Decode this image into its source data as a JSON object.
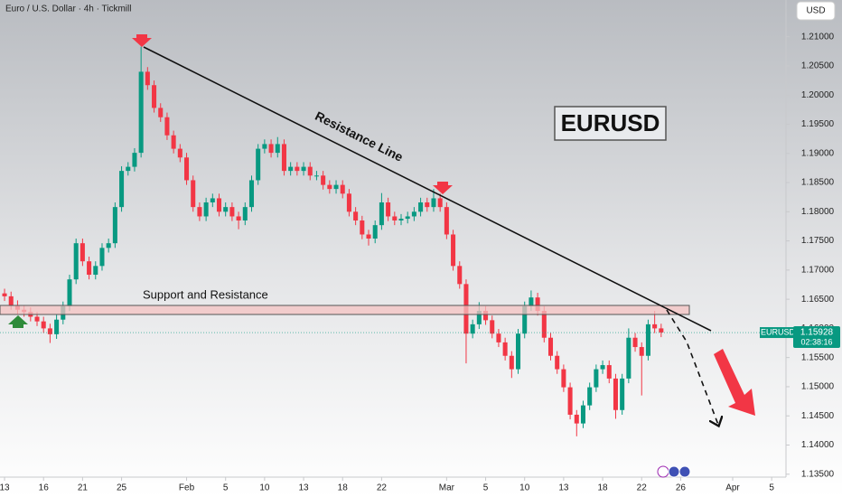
{
  "chart_data": {
    "type": "candlestick",
    "title": "Euro / U.S. Dollar · 4h · Tickmill",
    "currency": "USD",
    "countdown": "02:38:16",
    "last_price": 1.15928,
    "annotations": [
      "Support and Resistance",
      "Resistance Line",
      "EURUSD"
    ],
    "grid": false,
    "xlim": [
      -0.35,
      60.1
    ],
    "ylim": [
      1.1345,
      1.2163
    ],
    "xticks": [
      {
        "value": 0,
        "label": "13"
      },
      {
        "value": 3,
        "label": "16"
      },
      {
        "value": 6,
        "label": "21"
      },
      {
        "value": 9,
        "label": "25"
      },
      {
        "value": 14,
        "label": "Feb"
      },
      {
        "value": 17,
        "label": "5"
      },
      {
        "value": 20,
        "label": "10"
      },
      {
        "value": 23,
        "label": "13"
      },
      {
        "value": 26,
        "label": "18"
      },
      {
        "value": 29,
        "label": "22"
      },
      {
        "value": 34,
        "label": "Mar"
      },
      {
        "value": 37,
        "label": "5"
      },
      {
        "value": 40,
        "label": "10"
      },
      {
        "value": 43,
        "label": "13"
      },
      {
        "value": 46,
        "label": "18"
      },
      {
        "value": 49,
        "label": "22"
      },
      {
        "value": 52,
        "label": "26"
      },
      {
        "value": 56,
        "label": "Apr"
      },
      {
        "value": 59,
        "label": "5"
      }
    ],
    "yticks": [
      {
        "value": 1.135,
        "label": "1.13500"
      },
      {
        "value": 1.14,
        "label": "1.14000"
      },
      {
        "value": 1.145,
        "label": "1.14500"
      },
      {
        "value": 1.15,
        "label": "1.15000"
      },
      {
        "value": 1.155,
        "label": "1.15500"
      },
      {
        "value": 1.16,
        "label": "1.16000"
      },
      {
        "value": 1.165,
        "label": "1.16500"
      },
      {
        "value": 1.17,
        "label": "1.17000"
      },
      {
        "value": 1.175,
        "label": "1.17500"
      },
      {
        "value": 1.18,
        "label": "1.18000"
      },
      {
        "value": 1.185,
        "label": "1.18500"
      },
      {
        "value": 1.19,
        "label": "1.19000"
      },
      {
        "value": 1.195,
        "label": "1.19500"
      },
      {
        "value": 1.2,
        "label": "1.20000"
      },
      {
        "value": 1.205,
        "label": "1.20500"
      },
      {
        "value": 1.21,
        "label": "1.21000"
      }
    ],
    "series": [
      {
        "name": "EURUSD",
        "up_color": "#089981",
        "down_color": "#f23645",
        "x": [
          0,
          0.5,
          1,
          1.5,
          2,
          2.5,
          3,
          3.5,
          4,
          4.5,
          5,
          5.5,
          6,
          6.5,
          7,
          7.5,
          8,
          8.5,
          9,
          9.5,
          10,
          10.5,
          11,
          11.5,
          12,
          12.5,
          13,
          13.5,
          14,
          14.5,
          15,
          15.5,
          16,
          16.5,
          17,
          17.5,
          18,
          18.5,
          19,
          19.5,
          20,
          20.5,
          21,
          21.5,
          22,
          22.5,
          23,
          23.5,
          24,
          24.5,
          25,
          25.5,
          26,
          26.5,
          27,
          27.5,
          28,
          28.5,
          29,
          29.5,
          30,
          30.5,
          31,
          31.5,
          32,
          32.5,
          33,
          33.5,
          34,
          34.5,
          35,
          35.5,
          36,
          36.5,
          37,
          37.5,
          38,
          38.5,
          39,
          39.5,
          40,
          40.5,
          41,
          41.5,
          42,
          42.5,
          43,
          43.5,
          44,
          44.5,
          45,
          45.5,
          46,
          46.5,
          47,
          47.5,
          48,
          48.5,
          49,
          49.5,
          50,
          50.5
        ],
        "ohlc": [
          [
            1.166,
            1.1668,
            1.1647,
            1.1655
          ],
          [
            1.1655,
            1.1663,
            1.1632,
            1.164
          ],
          [
            1.164,
            1.1648,
            1.1624,
            1.1632
          ],
          [
            1.1632,
            1.164,
            1.162,
            1.1628
          ],
          [
            1.1628,
            1.1636,
            1.1612,
            1.162
          ],
          [
            1.162,
            1.1628,
            1.1604,
            1.1612
          ],
          [
            1.1612,
            1.162,
            1.1592,
            1.16
          ],
          [
            1.16,
            1.1608,
            1.1575,
            1.159
          ],
          [
            1.159,
            1.1623,
            1.1582,
            1.1615
          ],
          [
            1.1615,
            1.1646,
            1.1607,
            1.1638
          ],
          [
            1.1638,
            1.1692,
            1.163,
            1.1684
          ],
          [
            1.1684,
            1.1754,
            1.1676,
            1.1746
          ],
          [
            1.1746,
            1.1754,
            1.1707,
            1.1715
          ],
          [
            1.1715,
            1.1723,
            1.1684,
            1.1692
          ],
          [
            1.1692,
            1.1715,
            1.1684,
            1.1707
          ],
          [
            1.1707,
            1.1746,
            1.1699,
            1.1738
          ],
          [
            1.1738,
            1.1754,
            1.173,
            1.1746
          ],
          [
            1.1746,
            1.1816,
            1.1738,
            1.1808
          ],
          [
            1.1808,
            1.1878,
            1.18,
            1.187
          ],
          [
            1.187,
            1.1885,
            1.1862,
            1.1877
          ],
          [
            1.1877,
            1.1909,
            1.1869,
            1.1901
          ],
          [
            1.1901,
            1.2083,
            1.1893,
            1.204
          ],
          [
            1.204,
            1.2048,
            1.2009,
            1.2017
          ],
          [
            1.2017,
            1.2025,
            1.197,
            1.1978
          ],
          [
            1.1978,
            1.1986,
            1.1954,
            1.1962
          ],
          [
            1.1962,
            1.197,
            1.1923,
            1.1931
          ],
          [
            1.1931,
            1.1939,
            1.19,
            1.1908
          ],
          [
            1.1908,
            1.1916,
            1.1885,
            1.1893
          ],
          [
            1.1893,
            1.1901,
            1.1846,
            1.1854
          ],
          [
            1.1854,
            1.1862,
            1.18,
            1.1808
          ],
          [
            1.1808,
            1.1816,
            1.1784,
            1.1792
          ],
          [
            1.1792,
            1.1824,
            1.1784,
            1.1816
          ],
          [
            1.1816,
            1.1831,
            1.1808,
            1.1823
          ],
          [
            1.1823,
            1.1831,
            1.1792,
            1.18
          ],
          [
            1.18,
            1.1816,
            1.1792,
            1.1808
          ],
          [
            1.1808,
            1.1816,
            1.1784,
            1.1792
          ],
          [
            1.1792,
            1.18,
            1.177,
            1.1785
          ],
          [
            1.1785,
            1.1816,
            1.1777,
            1.1808
          ],
          [
            1.1808,
            1.1862,
            1.18,
            1.1854
          ],
          [
            1.1854,
            1.1916,
            1.1846,
            1.1908
          ],
          [
            1.1908,
            1.1924,
            1.19,
            1.1916
          ],
          [
            1.1916,
            1.1924,
            1.1893,
            1.1901
          ],
          [
            1.1901,
            1.1928,
            1.1893,
            1.1916
          ],
          [
            1.1916,
            1.1924,
            1.1862,
            1.187
          ],
          [
            1.187,
            1.1885,
            1.1862,
            1.1877
          ],
          [
            1.1877,
            1.1885,
            1.1862,
            1.187
          ],
          [
            1.187,
            1.1885,
            1.1862,
            1.1877
          ],
          [
            1.1877,
            1.1885,
            1.1854,
            1.1862
          ],
          [
            1.1862,
            1.187,
            1.1854,
            1.1862
          ],
          [
            1.1862,
            1.187,
            1.1838,
            1.1846
          ],
          [
            1.1846,
            1.1854,
            1.1831,
            1.1839
          ],
          [
            1.1839,
            1.1854,
            1.1831,
            1.1846
          ],
          [
            1.1846,
            1.1854,
            1.1823,
            1.1831
          ],
          [
            1.1831,
            1.1839,
            1.1792,
            1.18
          ],
          [
            1.18,
            1.1808,
            1.1777,
            1.1785
          ],
          [
            1.1785,
            1.1793,
            1.1753,
            1.1761
          ],
          [
            1.1761,
            1.1769,
            1.1742,
            1.1754
          ],
          [
            1.1754,
            1.1785,
            1.1746,
            1.1777
          ],
          [
            1.1777,
            1.1832,
            1.1769,
            1.1816
          ],
          [
            1.1816,
            1.1824,
            1.1784,
            1.1792
          ],
          [
            1.1792,
            1.18,
            1.1777,
            1.1785
          ],
          [
            1.1785,
            1.1796,
            1.1777,
            1.1788
          ],
          [
            1.1788,
            1.18,
            1.178,
            1.1792
          ],
          [
            1.1792,
            1.1808,
            1.1784,
            1.18
          ],
          [
            1.18,
            1.1824,
            1.1792,
            1.1816
          ],
          [
            1.1816,
            1.1824,
            1.18,
            1.1808
          ],
          [
            1.1808,
            1.1839,
            1.18,
            1.1823
          ],
          [
            1.1823,
            1.1831,
            1.18,
            1.1808
          ],
          [
            1.1808,
            1.1816,
            1.1753,
            1.1761
          ],
          [
            1.1761,
            1.1769,
            1.1699,
            1.1707
          ],
          [
            1.1707,
            1.1715,
            1.1668,
            1.1676
          ],
          [
            1.1676,
            1.1684,
            1.154,
            1.1591
          ],
          [
            1.1591,
            1.1615,
            1.1583,
            1.1607
          ],
          [
            1.1607,
            1.1645,
            1.1599,
            1.163
          ],
          [
            1.163,
            1.1638,
            1.1606,
            1.1614
          ],
          [
            1.1614,
            1.1622,
            1.1583,
            1.1591
          ],
          [
            1.1591,
            1.1599,
            1.1568,
            1.1576
          ],
          [
            1.1576,
            1.1584,
            1.1545,
            1.1553
          ],
          [
            1.1553,
            1.1561,
            1.1515,
            1.153
          ],
          [
            1.153,
            1.1599,
            1.1522,
            1.1591
          ],
          [
            1.1591,
            1.1646,
            1.1583,
            1.1638
          ],
          [
            1.1638,
            1.1665,
            1.163,
            1.1653
          ],
          [
            1.1653,
            1.1661,
            1.1622,
            1.163
          ],
          [
            1.163,
            1.1638,
            1.1576,
            1.1584
          ],
          [
            1.1584,
            1.1592,
            1.1545,
            1.1553
          ],
          [
            1.1553,
            1.1561,
            1.1522,
            1.153
          ],
          [
            1.153,
            1.1538,
            1.1491,
            1.1499
          ],
          [
            1.1499,
            1.1507,
            1.1444,
            1.1452
          ],
          [
            1.1452,
            1.146,
            1.1415,
            1.1437
          ],
          [
            1.1437,
            1.1476,
            1.1429,
            1.1468
          ],
          [
            1.1468,
            1.1507,
            1.146,
            1.1499
          ],
          [
            1.1499,
            1.1538,
            1.1491,
            1.153
          ],
          [
            1.153,
            1.1545,
            1.1522,
            1.1537
          ],
          [
            1.1537,
            1.1545,
            1.1506,
            1.1514
          ],
          [
            1.1514,
            1.1522,
            1.1445,
            1.146
          ],
          [
            1.146,
            1.1522,
            1.1452,
            1.1514
          ],
          [
            1.1514,
            1.16,
            1.1506,
            1.1584
          ],
          [
            1.1584,
            1.1592,
            1.156,
            1.1568
          ],
          [
            1.1568,
            1.1576,
            1.1485,
            1.1553
          ],
          [
            1.1553,
            1.1615,
            1.1545,
            1.1607
          ],
          [
            1.1607,
            1.163,
            1.1592,
            1.16
          ],
          [
            1.16,
            1.1608,
            1.1585,
            1.1593
          ]
        ]
      }
    ]
  }
}
